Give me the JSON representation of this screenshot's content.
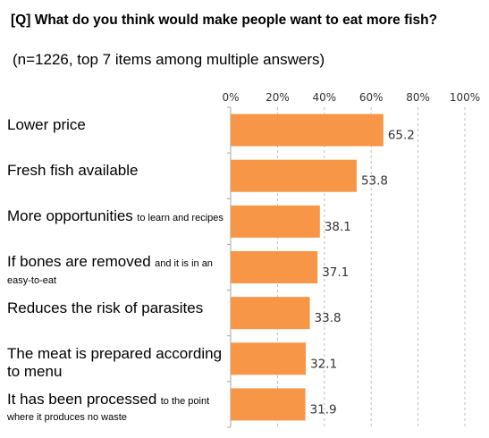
{
  "header": {
    "question_tag": "[Q]",
    "question": "What do you think would make people want to eat more fish?",
    "subtitle": "(n=1226, top 7 items among multiple answers)"
  },
  "chart_data": {
    "type": "bar",
    "orientation": "horizontal",
    "categories": [
      {
        "main": "Lower price",
        "rest": ""
      },
      {
        "main": "Fresh fish available",
        "rest": ""
      },
      {
        "main": "More opportunities",
        "rest": "to learn and recipes"
      },
      {
        "main": "If bones are removed",
        "rest": "and it is in an easy-to-eat"
      },
      {
        "main": "Reduces the risk of parasites",
        "rest": ""
      },
      {
        "main": "The meat is prepared according to menu",
        "rest": ""
      },
      {
        "main": "It has been processed",
        "rest": "to the point where it produces no waste"
      }
    ],
    "values": [
      65.2,
      53.8,
      38.1,
      37.1,
      33.8,
      32.1,
      31.9
    ],
    "value_labels": [
      "65.2",
      "53.8",
      "38.1",
      "37.1",
      "33.8",
      "32.1",
      "31.9"
    ],
    "xlim": [
      0,
      100
    ],
    "x_ticks": [
      "0%",
      "20%",
      "40%",
      "60%",
      "80%",
      "100%"
    ],
    "grid": "vertical dashed",
    "bar_color": "#F79646",
    "grid_color": "#bfbfbf"
  }
}
